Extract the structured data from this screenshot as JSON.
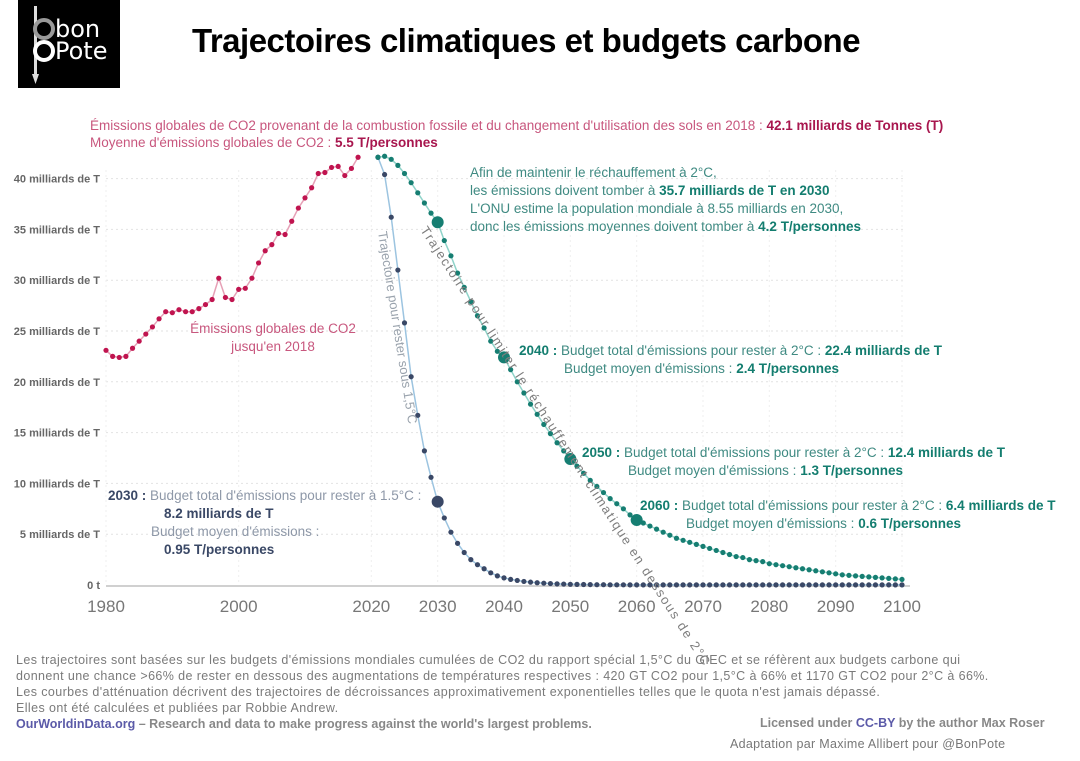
{
  "logo": {
    "line1": "bon",
    "line2": "Pote"
  },
  "title": "Trajectoires climatiques et budgets carbone",
  "header_notes": {
    "line1_text": "Émissions globales de CO2 provenant de la combustion fossile et du changement d'utilisation des sols en 2018 :",
    "line1_value": "42.1 milliards de Tonnes (T)",
    "line2_text": "Moyenne d'émissions globales de CO2 :",
    "line2_value": "5.5 T/personnes"
  },
  "annotations": {
    "target2030": {
      "l1": "Afin de maintenir le réchauffement à 2°C,",
      "l2_text": "les émissions doivent tomber à",
      "l2_value": "35.7 milliards de T en 2030",
      "l3": "L'ONU estime la population mondiale à 8.55 milliards en 2030,",
      "l4_text": "donc les émissions moyennes doivent tomber à",
      "l4_value": "4.2 T/personnes"
    },
    "y2040": {
      "year": "2040 :",
      "l1_text": "Budget total d'émissions pour rester à 2°C :",
      "l1_value": "22.4 milliards de T",
      "l2_text": "Budget moyen d'émissions :",
      "l2_value": "2.4 T/personnes"
    },
    "y2050": {
      "year": "2050 :",
      "l1_text": "Budget total d'émissions pour rester à 2°C :",
      "l1_value": "12.4 milliards de T",
      "l2_text": "Budget moyen d'émissions :",
      "l2_value": "1.3 T/personnes"
    },
    "y2060": {
      "year": "2060 :",
      "l1_text": "Budget total d'émissions pour rester à 2°C :",
      "l1_value": "6.4 milliards de T",
      "l2_text": "Budget moyen d'émissions :",
      "l2_value": "0.6 T/personnes"
    },
    "y2030_15": {
      "year": "2030 :",
      "l1_text": "Budget total d'émissions pour rester à 1.5°C :",
      "l1_value": "8.2 milliards de T",
      "l2_text": "Budget moyen d'émissions :",
      "l2_value": "0.95 T/personnes"
    },
    "historic_label_1": "Émissions globales de CO2",
    "historic_label_2": "jusqu'en 2018",
    "curve15_label": "Trajectoire pour rester sous 1,5°C",
    "curve2_label": "Trajectoire pour limiter le réchauffement climatique en dessous de 2°C"
  },
  "footer": {
    "lines": [
      "Les trajectoires sont basées sur les budgets d'émissions mondiales cumulées de CO2 du rapport spécial 1,5°C du GIEC et se réfèrent aux budgets carbone qui",
      "donnent une chance >66% de rester en dessous des augmentations de températures respectives : 420 GT CO2 pour 1,5°C à 66% et 1170 GT CO2 pour 2°C à 66%.",
      "Les courbes d'atténuation décrivent des trajectoires de décroissances approximativement exponentielles telles que le quota n'est jamais dépassé.",
      "Elles ont été calculées et publiées par Robbie Andrew."
    ],
    "owid_brand": "OurWorldinData.org",
    "owid_tagline": " – Research and data to make progress against the world's largest problems.",
    "license_pre": "Licensed under ",
    "license_link": "CC-BY",
    "license_post": " by the author Max Roser",
    "adaptation": "Adaptation par Maxime Allibert pour @BonPote"
  },
  "chart_data": {
    "type": "line",
    "title": "Trajectoires climatiques et budgets carbone",
    "xlabel": "",
    "ylabel": "",
    "xlim": [
      1980,
      2100
    ],
    "ylim": [
      0,
      42.5
    ],
    "grid": true,
    "x_ticks": [
      1980,
      2000,
      2020,
      2030,
      2040,
      2050,
      2060,
      2070,
      2080,
      2090,
      2100
    ],
    "y_ticks": [
      {
        "value": 0,
        "label": "0 t"
      },
      {
        "value": 5,
        "label": "5 milliards de T"
      },
      {
        "value": 10,
        "label": "10 milliards de T"
      },
      {
        "value": 15,
        "label": "15 milliards de T"
      },
      {
        "value": 20,
        "label": "20 milliards de T"
      },
      {
        "value": 25,
        "label": "25 milliards de T"
      },
      {
        "value": 30,
        "label": "30 milliards de T"
      },
      {
        "value": 35,
        "label": "35 milliards de T"
      },
      {
        "value": 40,
        "label": "40 milliards de T"
      }
    ],
    "series": [
      {
        "name": "Émissions globales de CO2 jusqu'en 2018",
        "color": "#c0144f",
        "line_color": "#e6a0b6",
        "x": [
          1980,
          1981,
          1982,
          1983,
          1984,
          1985,
          1986,
          1987,
          1988,
          1989,
          1990,
          1991,
          1992,
          1993,
          1994,
          1995,
          1996,
          1997,
          1998,
          1999,
          2000,
          2001,
          2002,
          2003,
          2004,
          2005,
          2006,
          2007,
          2008,
          2009,
          2010,
          2011,
          2012,
          2013,
          2014,
          2015,
          2016,
          2017,
          2018
        ],
        "values": [
          23.1,
          22.5,
          22.4,
          22.5,
          23.3,
          24.0,
          24.7,
          25.4,
          26.2,
          26.9,
          26.8,
          27.1,
          26.9,
          26.9,
          27.2,
          27.6,
          28.1,
          30.2,
          28.3,
          28.1,
          29.1,
          29.2,
          30.2,
          31.7,
          32.9,
          33.5,
          34.6,
          34.5,
          35.8,
          37.1,
          38.1,
          39.1,
          40.5,
          40.6,
          41.1,
          41.2,
          40.3,
          41.0,
          42.1
        ]
      },
      {
        "name": "Trajectoire pour limiter le réchauffement climatique en dessous de 2°C",
        "color": "#167e72",
        "line_color": "#8fd3c9",
        "x": [
          2021,
          2022,
          2023,
          2024,
          2025,
          2026,
          2027,
          2028,
          2029,
          2030,
          2031,
          2032,
          2033,
          2034,
          2035,
          2036,
          2037,
          2038,
          2039,
          2040,
          2041,
          2042,
          2043,
          2044,
          2045,
          2046,
          2047,
          2048,
          2049,
          2050,
          2051,
          2052,
          2053,
          2054,
          2055,
          2056,
          2057,
          2058,
          2059,
          2060,
          2061,
          2062,
          2063,
          2064,
          2065,
          2066,
          2067,
          2068,
          2069,
          2070,
          2071,
          2072,
          2073,
          2074,
          2075,
          2076,
          2077,
          2078,
          2079,
          2080,
          2081,
          2082,
          2083,
          2084,
          2085,
          2086,
          2087,
          2088,
          2089,
          2090,
          2091,
          2092,
          2093,
          2094,
          2095,
          2096,
          2097,
          2098,
          2099,
          2100
        ],
        "values": [
          42.1,
          42.2,
          41.9,
          41.3,
          40.5,
          39.6,
          38.6,
          37.6,
          36.6,
          35.7,
          33.9,
          32.4,
          30.7,
          29.3,
          27.9,
          26.5,
          25.3,
          24.0,
          23.0,
          22.4,
          21.2,
          20.0,
          18.9,
          17.8,
          16.8,
          15.8,
          14.9,
          14.0,
          13.2,
          12.4,
          11.7,
          11.0,
          10.3,
          9.7,
          9.1,
          8.5,
          8.0,
          7.5,
          6.9,
          6.4,
          6.1,
          5.8,
          5.5,
          5.2,
          4.9,
          4.6,
          4.4,
          4.2,
          4.0,
          3.8,
          3.6,
          3.4,
          3.2,
          3.0,
          2.8,
          2.7,
          2.5,
          2.4,
          2.3,
          2.1,
          2.0,
          1.9,
          1.8,
          1.7,
          1.6,
          1.5,
          1.4,
          1.3,
          1.2,
          1.1,
          1.0,
          0.95,
          0.9,
          0.85,
          0.8,
          0.75,
          0.7,
          0.65,
          0.6,
          0.55
        ]
      },
      {
        "name": "Trajectoire pour rester sous 1,5°C",
        "color": "#3a4866",
        "line_color": "#9cc4e0",
        "x": [
          2021,
          2022,
          2023,
          2024,
          2025,
          2026,
          2027,
          2028,
          2029,
          2030,
          2031,
          2032,
          2033,
          2034,
          2035,
          2036,
          2037,
          2038,
          2039,
          2040,
          2041,
          2042,
          2043,
          2044,
          2045,
          2046,
          2047,
          2048,
          2049,
          2050,
          2051,
          2052,
          2053,
          2054,
          2055,
          2056,
          2057,
          2058,
          2059,
          2060,
          2061,
          2062,
          2063,
          2064,
          2065,
          2066,
          2067,
          2068,
          2069,
          2070,
          2071,
          2072,
          2073,
          2074,
          2075,
          2076,
          2077,
          2078,
          2079,
          2080,
          2081,
          2082,
          2083,
          2084,
          2085,
          2086,
          2087,
          2088,
          2089,
          2090,
          2091,
          2092,
          2093,
          2094,
          2095,
          2096,
          2097,
          2098,
          2099,
          2100
        ],
        "values": [
          42.1,
          40.4,
          36.2,
          31.0,
          25.8,
          20.5,
          16.7,
          13.2,
          10.6,
          8.2,
          6.6,
          5.2,
          4.1,
          3.2,
          2.5,
          2.0,
          1.6,
          1.2,
          0.9,
          0.7,
          0.55,
          0.45,
          0.35,
          0.28,
          0.22,
          0.18,
          0.14,
          0.11,
          0.09,
          0.07,
          0.06,
          0.05,
          0.04,
          0.03,
          0.03,
          0.02,
          0.02,
          0.02,
          0.01,
          0.01,
          0.01,
          0.01,
          0.01,
          0.01,
          0.01,
          0.01,
          0.01,
          0.01,
          0.01,
          0.01,
          0.01,
          0.01,
          0.01,
          0.01,
          0.01,
          0.01,
          0.01,
          0.01,
          0.01,
          0.01,
          0.01,
          0.01,
          0.01,
          0.01,
          0.01,
          0.01,
          0.01,
          0.01,
          0.01,
          0.01,
          0.01,
          0.01,
          0.01,
          0.01,
          0.01,
          0.01,
          0.01,
          0.01,
          0.01,
          0.01
        ]
      }
    ],
    "highlighted_points": [
      {
        "series": "2°C",
        "x": 2030,
        "y": 35.7
      },
      {
        "series": "2°C",
        "x": 2040,
        "y": 22.4
      },
      {
        "series": "2°C",
        "x": 2050,
        "y": 12.4
      },
      {
        "series": "2°C",
        "x": 2060,
        "y": 6.4
      },
      {
        "series": "1.5°C",
        "x": 2030,
        "y": 8.2
      }
    ]
  }
}
